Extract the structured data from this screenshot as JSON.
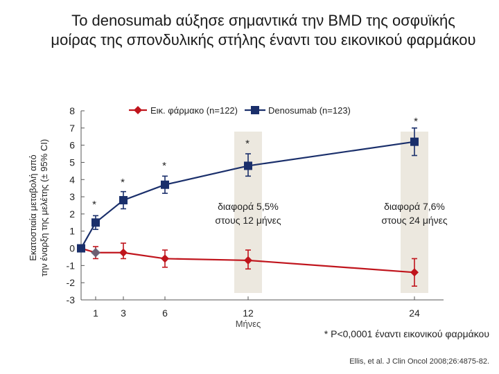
{
  "chart_data": {
    "type": "line",
    "title_lines": [
      "Το denosumab αύξησε σημαντικά την BMD της οσφυϊκής",
      "μοίρας της σπονδυλικής στήλης έναντι του εικονικού φαρμάκου"
    ],
    "ylabel_lines": [
      "Εκατοστιαία μεταβολή από",
      "την έναρξη της μελέτης (± 95% CI)"
    ],
    "xlabel": "Μήνες",
    "ylim": [
      -3,
      8
    ],
    "yticks": [
      "8",
      "7",
      "6",
      "5",
      "4",
      "3",
      "2",
      "1",
      "0",
      "-1",
      "-2",
      "-3"
    ],
    "xticks": [
      "1",
      "3",
      "6",
      "12",
      "24"
    ],
    "legend": {
      "position": "top",
      "entries": [
        "Εικ. φάρμακο (n=122)",
        "Denosumab (n=123)"
      ]
    },
    "series": [
      {
        "name": "Εικ. φάρμακο (n=122)",
        "color": "#c0141c",
        "points": [
          {
            "x": 0,
            "y": 0,
            "lo": 0,
            "hi": 0
          },
          {
            "x": 1,
            "y": -0.25,
            "lo": -0.6,
            "hi": 0.1
          },
          {
            "x": 3,
            "y": -0.25,
            "lo": -0.6,
            "hi": 0.3
          },
          {
            "x": 6,
            "y": -0.6,
            "lo": -1.1,
            "hi": -0.1
          },
          {
            "x": 12,
            "y": -0.7,
            "lo": -1.2,
            "hi": -0.1
          },
          {
            "x": 24,
            "y": -1.4,
            "lo": -2.2,
            "hi": -0.6
          }
        ]
      },
      {
        "name": "Denosumab (n=123)",
        "color": "#1a2f6b",
        "points": [
          {
            "x": 0,
            "y": 0,
            "lo": 0,
            "hi": 0
          },
          {
            "x": 1,
            "y": 1.5,
            "lo": 1.1,
            "hi": 1.9
          },
          {
            "x": 3,
            "y": 2.8,
            "lo": 2.3,
            "hi": 3.3
          },
          {
            "x": 6,
            "y": 3.7,
            "lo": 3.2,
            "hi": 4.2
          },
          {
            "x": 12,
            "y": 4.8,
            "lo": 4.2,
            "hi": 5.5
          },
          {
            "x": 24,
            "y": 6.2,
            "lo": 5.4,
            "hi": 7.0
          }
        ]
      }
    ],
    "significance": [
      {
        "x": 1,
        "label": "*"
      },
      {
        "x": 3,
        "label": "*"
      },
      {
        "x": 6,
        "label": "*"
      },
      {
        "x": 12,
        "label": "*"
      },
      {
        "x": 24,
        "label": "*"
      }
    ],
    "highlight_bands": [
      {
        "x": 12,
        "color": "#ece8df"
      },
      {
        "x": 24,
        "color": "#ece8df"
      }
    ],
    "annotations": [
      {
        "x": 12,
        "y": 2.2,
        "lines": [
          "διαφορά 5,5%",
          "στους 12 μήνες"
        ]
      },
      {
        "x": 24,
        "y": 2.2,
        "lines": [
          "διαφορά 7,6%",
          "στους 24 μήνες"
        ]
      }
    ],
    "footnote": "* P<0,0001 έναντι εικονικού φαρμάκου",
    "citation": "Ellis, et al. J Clin Oncol 2008;26:4875-82."
  },
  "colors": {
    "axis": "#555555",
    "placebo": "#c0141c",
    "denosumab": "#1a2f6b",
    "band": "#ece8df",
    "baseline_marker": "#5f6b80"
  }
}
